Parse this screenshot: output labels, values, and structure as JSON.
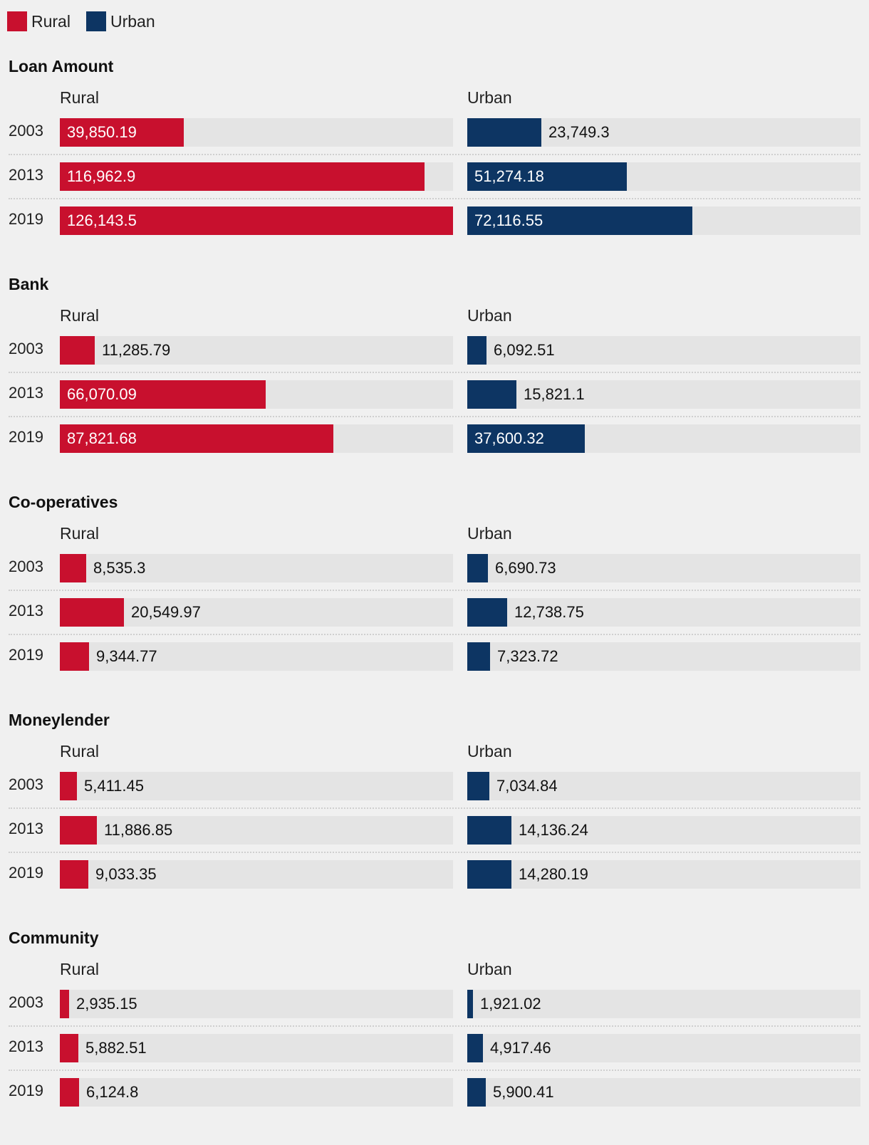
{
  "legend": [
    {
      "label": "Rural",
      "color": "#c8102e"
    },
    {
      "label": "Urban",
      "color": "#0d3563"
    }
  ],
  "chart_data": {
    "type": "bar",
    "layout": "small-multiples",
    "colors": {
      "Rural": "#c8102e",
      "Urban": "#0d3563",
      "track": "#e4e4e4"
    },
    "columns": [
      "Rural",
      "Urban"
    ],
    "categories": [
      "2003",
      "2013",
      "2019"
    ],
    "max_value": 126143.5,
    "panels": [
      {
        "title": "Loan Amount",
        "series": [
          {
            "name": "Rural",
            "values": [
              39850.19,
              116962.9,
              126143.5
            ],
            "labels": [
              "39,850.19",
              "116,962.9",
              "126,143.5"
            ]
          },
          {
            "name": "Urban",
            "values": [
              23749.3,
              51274.18,
              72116.55
            ],
            "labels": [
              "23,749.3",
              "51,274.18",
              "72,116.55"
            ]
          }
        ]
      },
      {
        "title": "Bank",
        "series": [
          {
            "name": "Rural",
            "values": [
              11285.79,
              66070.09,
              87821.68
            ],
            "labels": [
              "11,285.79",
              "66,070.09",
              "87,821.68"
            ]
          },
          {
            "name": "Urban",
            "values": [
              6092.51,
              15821.1,
              37600.32
            ],
            "labels": [
              "6,092.51",
              "15,821.1",
              "37,600.32"
            ]
          }
        ]
      },
      {
        "title": "Co-operatives",
        "series": [
          {
            "name": "Rural",
            "values": [
              8535.3,
              20549.97,
              9344.77
            ],
            "labels": [
              "8,535.3",
              "20,549.97",
              "9,344.77"
            ]
          },
          {
            "name": "Urban",
            "values": [
              6690.73,
              12738.75,
              7323.72
            ],
            "labels": [
              "6,690.73",
              "12,738.75",
              "7,323.72"
            ]
          }
        ]
      },
      {
        "title": "Moneylender",
        "series": [
          {
            "name": "Rural",
            "values": [
              5411.45,
              11886.85,
              9033.35
            ],
            "labels": [
              "5,411.45",
              "11,886.85",
              "9,033.35"
            ]
          },
          {
            "name": "Urban",
            "values": [
              7034.84,
              14136.24,
              14280.19
            ],
            "labels": [
              "7,034.84",
              "14,136.24",
              "14,280.19"
            ]
          }
        ]
      },
      {
        "title": "Community",
        "series": [
          {
            "name": "Rural",
            "values": [
              2935.15,
              5882.51,
              6124.8
            ],
            "labels": [
              "2,935.15",
              "5,882.51",
              "6,124.8"
            ]
          },
          {
            "name": "Urban",
            "values": [
              1921.02,
              4917.46,
              5900.41
            ],
            "labels": [
              "1,921.02",
              "4,917.46",
              "5,900.41"
            ]
          }
        ]
      }
    ]
  }
}
